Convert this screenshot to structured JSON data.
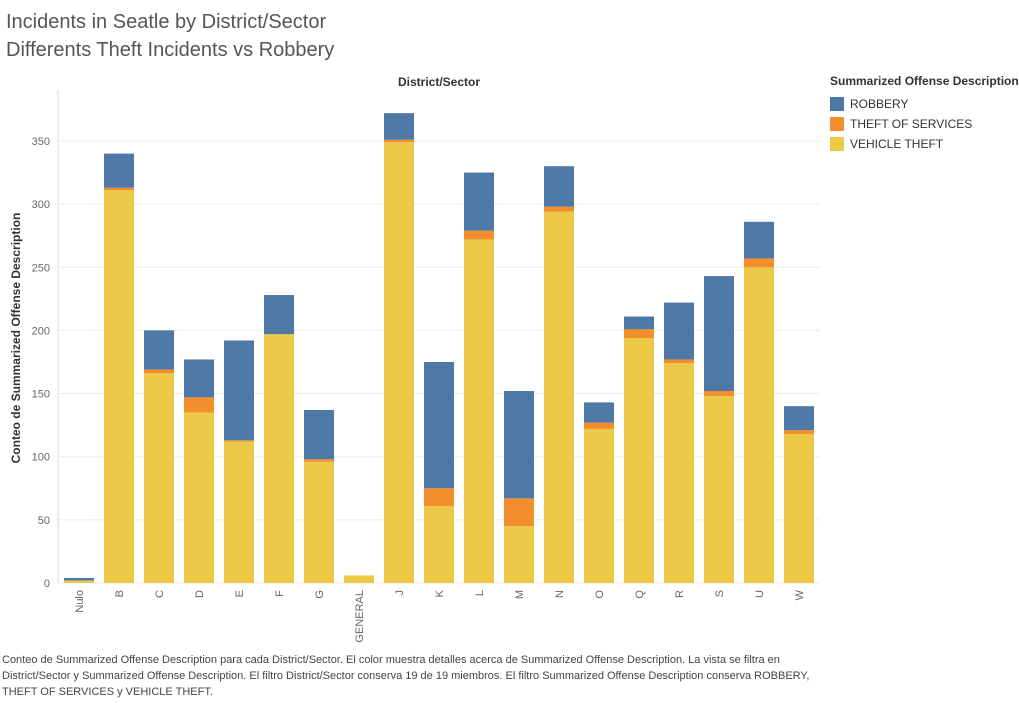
{
  "header": {
    "title_line1": "Incidents in Seatle by District/Sector",
    "title_line2": "Differents Theft Incidents vs Robbery"
  },
  "legend": {
    "title": "Summarized Offense Description",
    "items": [
      {
        "label": "ROBBERY",
        "color": "#4e79a7"
      },
      {
        "label": "THEFT OF SERVICES",
        "color": "#f28e2b"
      },
      {
        "label": "VEHICLE THEFT",
        "color": "#edc948"
      }
    ]
  },
  "caption": "Conteo de Summarized Offense Description para cada District/Sector.  El color muestra detalles acerca de Summarized Offense Description. La vista se filtra en District/Sector y Summarized Offense Description. El filtro District/Sector conserva 19 de 19 miembros. El filtro Summarized Offense Description conserva ROBBERY, THEFT OF SERVICES y VEHICLE THEFT.",
  "chart_data": {
    "type": "bar",
    "stacked": true,
    "title": "Incidents in Seatle by District/Sector",
    "subtitle": "Differents Theft Incidents vs Robbery",
    "xlabel": "District/Sector",
    "ylabel": "Conteo de Summarized Offense Description",
    "ylim": [
      0,
      380
    ],
    "yticks": [
      0,
      50,
      100,
      150,
      200,
      250,
      300,
      350
    ],
    "grid": true,
    "legend_position": "right",
    "categories": [
      "Nulo",
      "B",
      "C",
      "D",
      "E",
      "F",
      "G",
      "GENERAL",
      "J",
      "K",
      "L",
      "M",
      "N",
      "O",
      "Q",
      "R",
      "S",
      "U",
      "W"
    ],
    "series": [
      {
        "name": "VEHICLE THEFT",
        "color": "#edc948",
        "values": [
          2,
          311,
          166,
          135,
          112,
          197,
          96,
          6,
          349,
          61,
          272,
          45,
          294,
          122,
          194,
          174,
          148,
          250,
          118
        ]
      },
      {
        "name": "THEFT OF SERVICES",
        "color": "#f28e2b",
        "values": [
          0,
          2,
          3,
          12,
          1,
          0,
          2,
          0,
          2,
          14,
          7,
          22,
          4,
          5,
          7,
          3,
          4,
          7,
          3
        ]
      },
      {
        "name": "ROBBERY",
        "color": "#4e79a7",
        "values": [
          2,
          27,
          31,
          30,
          79,
          31,
          39,
          0,
          21,
          100,
          46,
          85,
          32,
          16,
          10,
          45,
          91,
          29,
          19
        ]
      }
    ]
  }
}
